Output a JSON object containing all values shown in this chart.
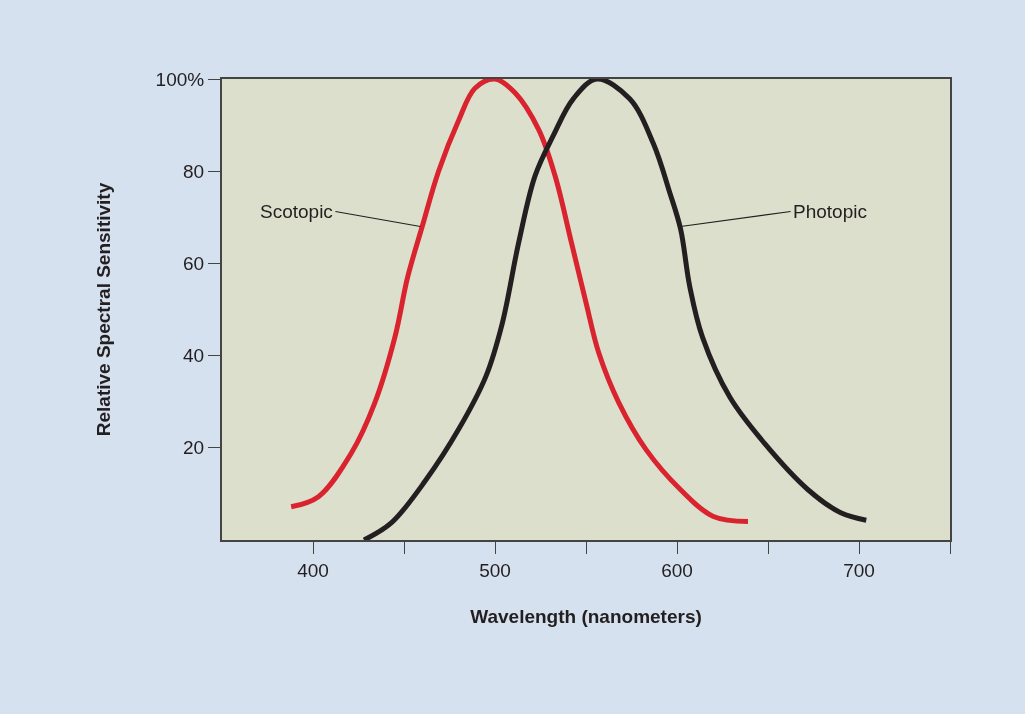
{
  "chart_data": {
    "type": "line",
    "xlabel": "Wavelength (nanometers)",
    "ylabel": "Relative Spectral Sensitivity",
    "series": [
      {
        "color": "#d9232e",
        "x": [
          388,
          403,
          421,
          434,
          445,
          452,
          460,
          469,
          480,
          489,
          500,
          511,
          524,
          533,
          542,
          550,
          557,
          568,
          583,
          602,
          620,
          639
        ],
        "values": [
          7.2,
          9.4,
          18.8,
          29.8,
          44,
          57,
          68,
          80,
          91,
          98,
          100,
          97,
          89,
          79,
          64.5,
          51.5,
          40.6,
          29.8,
          19.6,
          10.9,
          5.1,
          4
        ]
      },
      {
        "color": "#231f20",
        "x": [
          428,
          443,
          462,
          480,
          495,
          504,
          513,
          522,
          532,
          543,
          556,
          574,
          587,
          596,
          602,
          607,
          614,
          629,
          648,
          672,
          690,
          704
        ],
        "values": [
          0,
          3.7,
          13,
          24,
          35.5,
          47,
          64.5,
          79,
          87.7,
          95.7,
          100,
          95.7,
          86,
          75.4,
          67.4,
          55,
          44,
          31,
          21,
          10.9,
          5.9,
          4.3
        ]
      }
    ],
    "annotations": [
      {
        "text": "Scotopic",
        "x": 459,
        "y": 68
      },
      {
        "text": "Photopic",
        "x": 602,
        "y": 68
      }
    ],
    "xlim": [
      350,
      750
    ],
    "xticks": [
      400,
      {
        "value": 450,
        "label": null
      },
      500,
      {
        "value": 550,
        "label": null
      },
      600,
      {
        "value": 650,
        "label": null
      },
      700,
      {
        "value": 750,
        "label": null
      }
    ],
    "ylim": [
      0,
      100
    ],
    "yticks": [
      20,
      40,
      60,
      80,
      {
        "value": 100,
        "label": "100%"
      }
    ],
    "grid": false,
    "marker": "none",
    "line_style": "solid"
  }
}
